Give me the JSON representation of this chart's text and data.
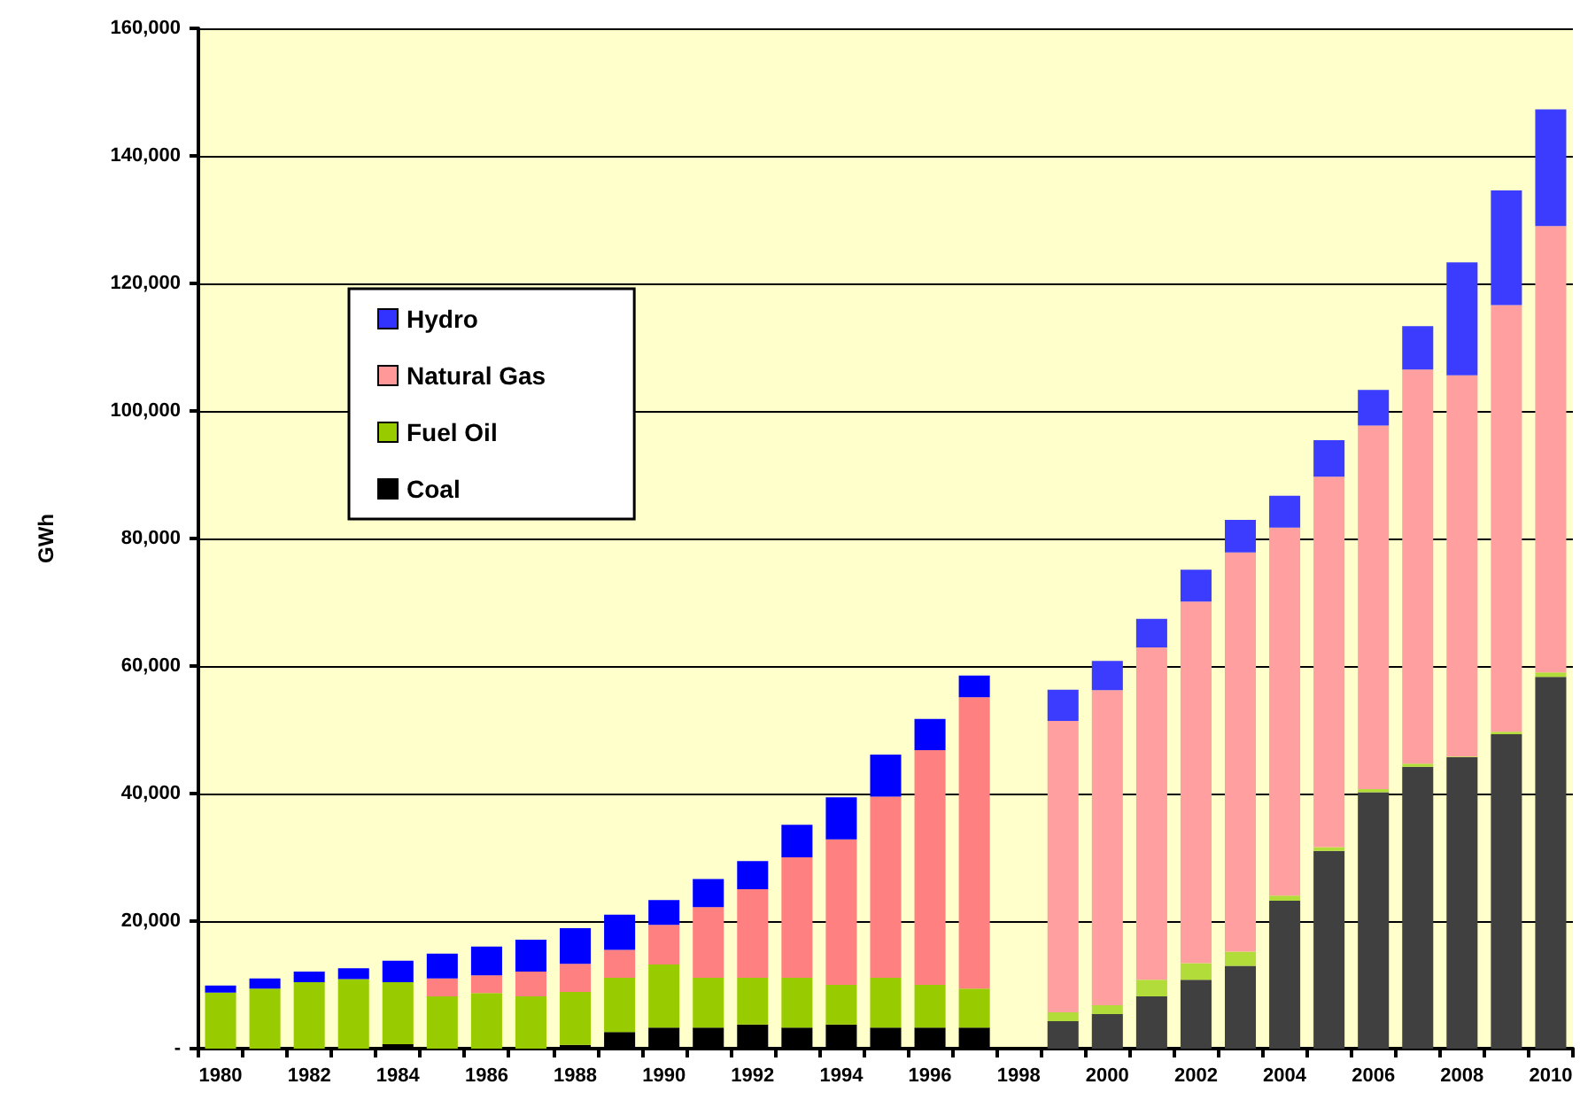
{
  "chart_data": {
    "type": "bar",
    "stacked": true,
    "ylabel": "GWh",
    "categories": [
      "1980",
      null,
      "1982",
      null,
      "1984",
      null,
      "1986",
      null,
      "1988",
      null,
      "1990",
      null,
      "1992",
      null,
      "1994",
      null,
      "1996",
      null,
      "1998",
      null,
      "2000",
      null,
      "2002",
      null,
      "2004",
      null,
      "2006",
      null,
      "2008",
      null,
      "2010"
    ],
    "series": [
      {
        "name": "Coal",
        "color": "#000000",
        "values": [
          0,
          0,
          0,
          0,
          700,
          0,
          0,
          0,
          600,
          2600,
          3300,
          3300,
          3800,
          3300,
          3800,
          3300,
          3300,
          3300,
          null,
          4300,
          5400,
          8200,
          10800,
          13000,
          23200,
          31000,
          40200,
          44200,
          45700,
          49300,
          58300
        ],
        "colors": [
          "#000000",
          "#000000",
          "#000000",
          "#000000",
          "#000000",
          "#000000",
          "#000000",
          "#000000",
          "#000000",
          "#000000",
          "#000000",
          "#000000",
          "#000000",
          "#000000",
          "#000000",
          "#000000",
          "#000000",
          "#000000",
          "#000000",
          "#404040",
          "#404040",
          "#404040",
          "#404040",
          "#404040",
          "#404040",
          "#404040",
          "#404040",
          "#404040",
          "#404040",
          "#404040",
          "#404040"
        ]
      },
      {
        "name": "Fuel Oil",
        "color": "#99cc00",
        "values": [
          8800,
          9400,
          10400,
          10900,
          9700,
          8200,
          8700,
          8200,
          8300,
          8500,
          9900,
          7800,
          7300,
          7800,
          6200,
          7800,
          6700,
          6100,
          null,
          1400,
          1400,
          2600,
          2600,
          2200,
          800,
          600,
          500,
          500,
          100,
          400,
          700
        ],
        "colors": [
          "#99cc00",
          "#99cc00",
          "#99cc00",
          "#99cc00",
          "#99cc00",
          "#99cc00",
          "#99cc00",
          "#99cc00",
          "#99cc00",
          "#99cc00",
          "#99cc00",
          "#99cc00",
          "#99cc00",
          "#99cc00",
          "#99cc00",
          "#99cc00",
          "#99cc00",
          "#99cc00",
          "#99cc00",
          "#b2dc3a",
          "#b2dc3a",
          "#b2dc3a",
          "#b2dc3a",
          "#b2dc3a",
          "#b2dc3a",
          "#b2dc3a",
          "#b2dc3a",
          "#b2dc3a",
          "#b2dc3a",
          "#b2dc3a",
          "#b2dc3a"
        ]
      },
      {
        "name": "Natural Gas",
        "color": "#ff9999",
        "values": [
          0,
          0,
          0,
          0,
          0,
          2800,
          2800,
          3900,
          4400,
          4400,
          6200,
          11100,
          13900,
          18900,
          22800,
          28400,
          36800,
          45700,
          null,
          45700,
          49400,
          52100,
          56700,
          62600,
          57700,
          58100,
          57000,
          61800,
          59800,
          66900,
          70000
        ],
        "colors": [
          "#ff8080",
          "#ff8080",
          "#ff8080",
          "#ff8080",
          "#ff8080",
          "#ff8080",
          "#ff8080",
          "#ff8080",
          "#ff8080",
          "#ff8080",
          "#ff8080",
          "#ff8080",
          "#ff8080",
          "#ff8080",
          "#ff8080",
          "#ff8080",
          "#ff8080",
          "#ff8080",
          "#ff8080",
          "#ff9f9f",
          "#ff9f9f",
          "#ff9f9f",
          "#ff9f9f",
          "#ff9f9f",
          "#ff9f9f",
          "#ff9f9f",
          "#ff9f9f",
          "#ff9f9f",
          "#ff9f9f",
          "#ff9f9f",
          "#ff9f9f"
        ]
      },
      {
        "name": "Hydro",
        "color": "#3333ff",
        "values": [
          1100,
          1600,
          1700,
          1700,
          3400,
          3900,
          4500,
          5000,
          5600,
          5500,
          3900,
          4400,
          4400,
          5100,
          6600,
          6600,
          4900,
          3400,
          null,
          4900,
          4600,
          4500,
          5000,
          5100,
          5000,
          5700,
          5600,
          6800,
          17700,
          18000,
          18300
        ],
        "colors": [
          "#0000ff",
          "#0000ff",
          "#0000ff",
          "#0000ff",
          "#0000ff",
          "#0000ff",
          "#0000ff",
          "#0000ff",
          "#0000ff",
          "#0000ff",
          "#0000ff",
          "#0000ff",
          "#0000ff",
          "#0000ff",
          "#0000ff",
          "#0000ff",
          "#0000ff",
          "#0000ff",
          "#0000ff",
          "#3c3cff",
          "#3c3cff",
          "#3c3cff",
          "#3c3cff",
          "#3c3cff",
          "#3c3cff",
          "#3c3cff",
          "#3c3cff",
          "#3c3cff",
          "#3c3cff",
          "#3c3cff",
          "#3c3cff"
        ]
      }
    ],
    "ylim": [
      0,
      160000
    ],
    "yticks": [
      {
        "value": 0,
        "label": "-"
      },
      {
        "value": 20000,
        "label": "20,000"
      },
      {
        "value": 40000,
        "label": "40,000"
      },
      {
        "value": 60000,
        "label": "60,000"
      },
      {
        "value": 80000,
        "label": "80,000"
      },
      {
        "value": 100000,
        "label": "100,000"
      },
      {
        "value": 120000,
        "label": "120,000"
      },
      {
        "value": 140000,
        "label": "140,000"
      },
      {
        "value": 160000,
        "label": "160,000"
      }
    ],
    "grid": "y",
    "legend": "top left"
  }
}
